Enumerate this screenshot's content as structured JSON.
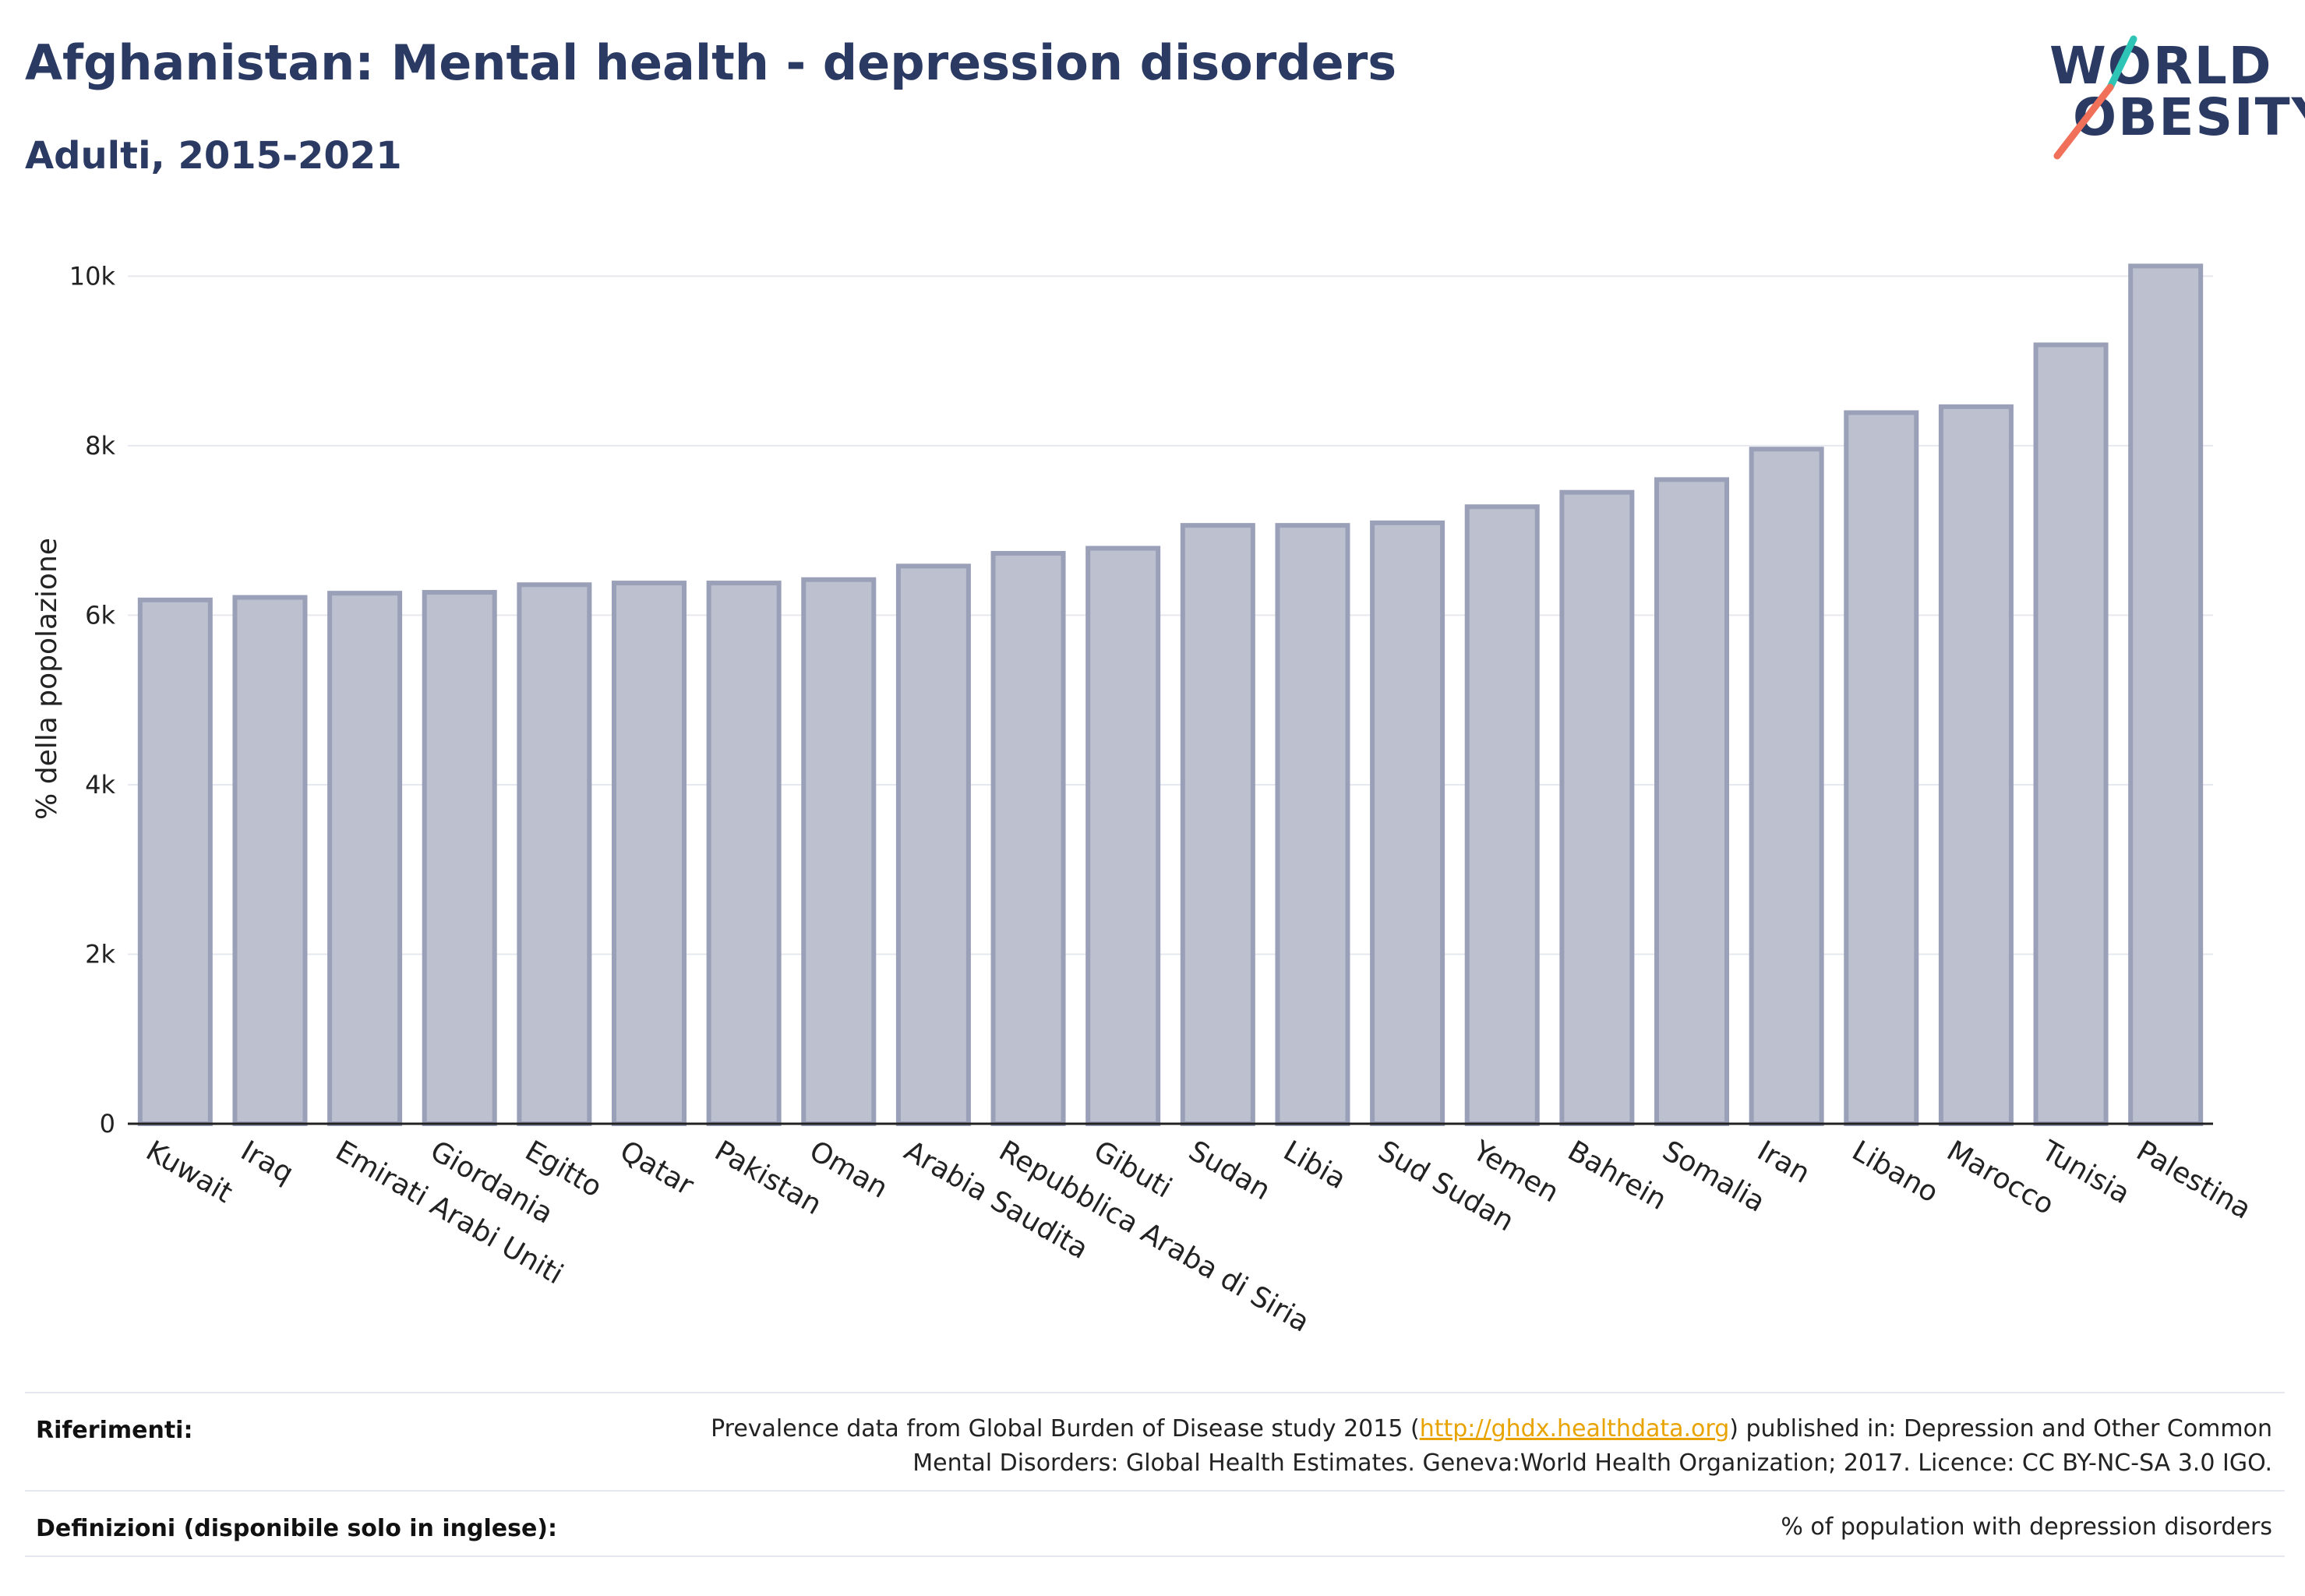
{
  "header": {
    "title": "Afghanistan: Mental health - depression disorders",
    "subtitle": "Adulti, 2015-2021"
  },
  "logo": {
    "line1": "WORLD",
    "line2": "OBESITY",
    "accent_colors": [
      "#2ec4b6",
      "#f0705a"
    ]
  },
  "chart_data": {
    "type": "bar",
    "title": "",
    "xlabel": "",
    "ylabel": "% della popolazione",
    "ylim": [
      0,
      10500
    ],
    "yticks": [
      0,
      2000,
      4000,
      6000,
      8000,
      10000
    ],
    "ytick_labels": [
      "0",
      "2k",
      "4k",
      "6k",
      "8k",
      "10k"
    ],
    "grid": true,
    "bar_color": "#bcc0cf",
    "bar_edge_color": "#9aa0b8",
    "categories": [
      "Kuwait",
      "Iraq",
      "Emirati Arabi Uniti",
      "Giordania",
      "Egitto",
      "Qatar",
      "Pakistan",
      "Oman",
      "Arabia Saudita",
      "Repubblica Araba di Siria",
      "Gibuti",
      "Sudan",
      "Libia",
      "Sud Sudan",
      "Yemen",
      "Bahrein",
      "Somalia",
      "Iran",
      "Libano",
      "Marocco",
      "Tunisia",
      "Palestina"
    ],
    "values": [
      6180,
      6210,
      6260,
      6270,
      6360,
      6380,
      6380,
      6420,
      6580,
      6730,
      6790,
      7060,
      7060,
      7090,
      7280,
      7450,
      7600,
      7960,
      8390,
      8460,
      9190,
      10120
    ]
  },
  "footer": {
    "references_label": "Riferimenti:",
    "references_pre": "Prevalence data from Global Burden of Disease study 2015 (",
    "references_link": "http://ghdx.healthdata.org",
    "references_post": ") published in: Depression and Other Common",
    "references_line2": "Mental Disorders: Global Health Estimates. Geneva:World Health Organization; 2017. Licence: CC BY-NC-SA 3.0 IGO.",
    "definitions_label": "Definizioni (disponibile solo in inglese):",
    "definitions_text": "% of population with depression disorders"
  }
}
